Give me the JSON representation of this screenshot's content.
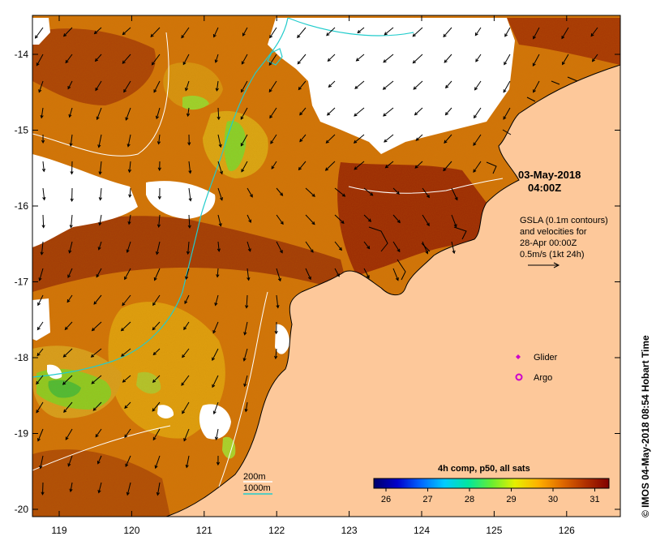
{
  "map": {
    "date_line1": "03-May-2018",
    "date_line2": "04:00Z",
    "gsla_lines": [
      "GSLA (0.1m contours)",
      "and velocities for",
      "28-Apr 00:00Z",
      "0.5m/s (1kt 24h)"
    ],
    "legend": {
      "glider_label": "Glider",
      "argo_label": "Argo",
      "glider_color": "#cc00cc",
      "argo_color": "#cc00cc"
    },
    "depth_legend": {
      "line1": "200m",
      "line2": "1000m",
      "line1_color": "#ffffff",
      "line2_color": "#22cccc"
    },
    "credit": "©  IMOS 04-May-2018 08:54 Hobart Time",
    "colorbar": {
      "title": "4h comp, p50, all sats",
      "ticks": [
        "26",
        "27",
        "28",
        "29",
        "30",
        "31"
      ],
      "colors": [
        "#00006a",
        "#0000cc",
        "#0066ff",
        "#00ccff",
        "#00e6a0",
        "#66ee33",
        "#e6f000",
        "#ffb000",
        "#e06a00",
        "#b03000",
        "#800000"
      ]
    },
    "axes": {
      "x_ticks": [
        "119",
        "120",
        "121",
        "122",
        "123",
        "124",
        "125",
        "126"
      ],
      "y_ticks": [
        "-14",
        "-15",
        "-16",
        "-17",
        "-18",
        "-19",
        "-20"
      ]
    },
    "land_color": "#fdc89a",
    "cloud_color": "#ffffff"
  }
}
